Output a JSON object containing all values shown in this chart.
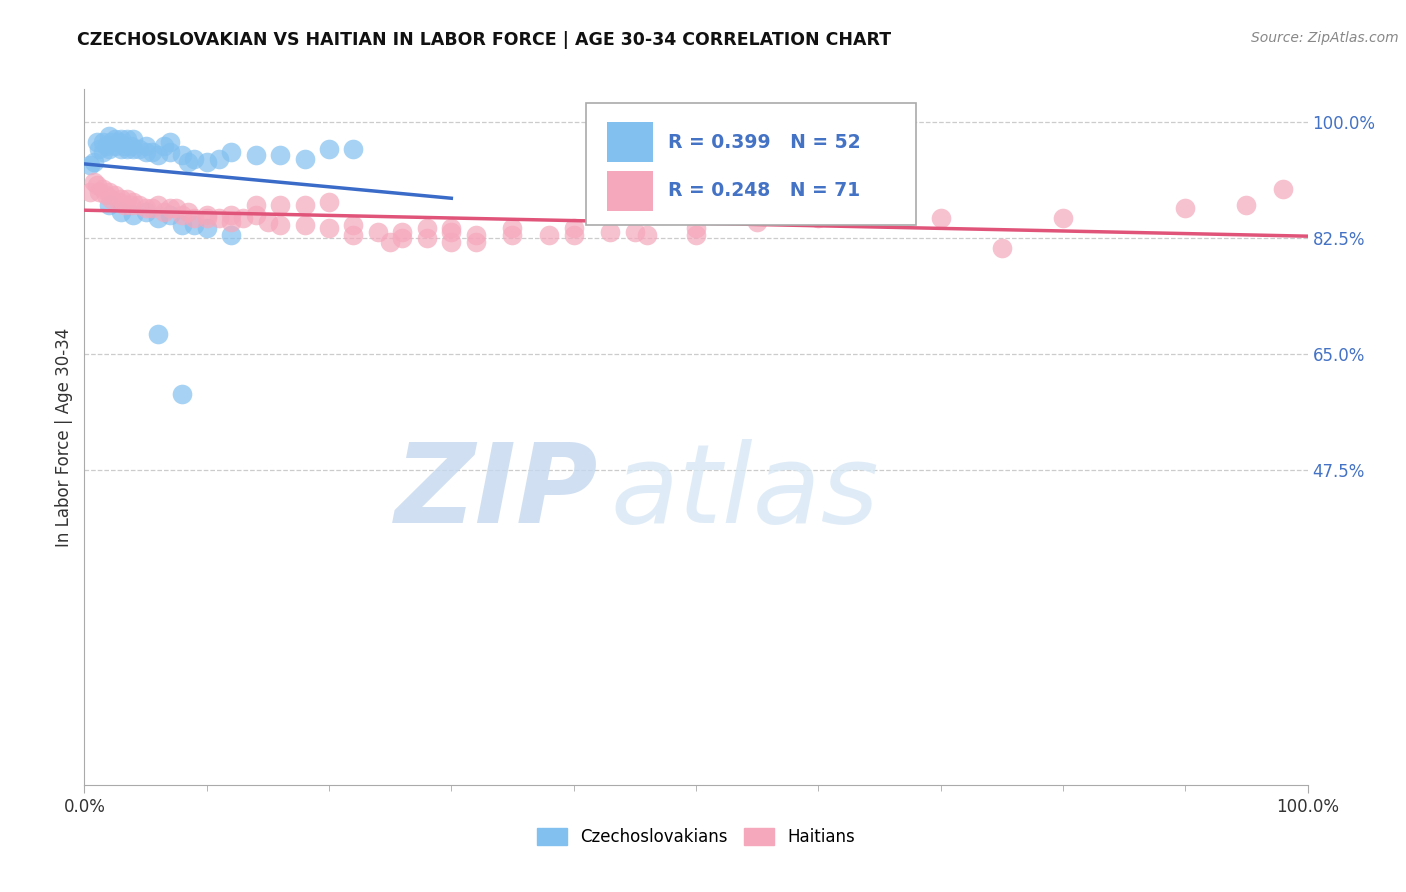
{
  "title": "CZECHOSLOVAKIAN VS HAITIAN IN LABOR FORCE | AGE 30-34 CORRELATION CHART",
  "source": "Source: ZipAtlas.com",
  "ylabel": "In Labor Force | Age 30-34",
  "xlim": [
    0.0,
    1.0
  ],
  "ylim": [
    0.0,
    1.05
  ],
  "x_tick_labels": [
    "0.0%",
    "100.0%"
  ],
  "x_tick_positions": [
    0.0,
    1.0
  ],
  "y_tick_labels_right": [
    "100.0%",
    "82.5%",
    "65.0%",
    "47.5%"
  ],
  "y_tick_positions_right": [
    1.0,
    0.825,
    0.65,
    0.475
  ],
  "legend_label1": "Czechoslovakians",
  "legend_label2": "Haitians",
  "blue_color": "#82C0F0",
  "pink_color": "#F5A8BC",
  "blue_line_color": "#3A6BC8",
  "pink_line_color": "#E0547A",
  "r_n_color": "#4472C4",
  "watermark_zip": "ZIP",
  "watermark_atlas": "atlas",
  "blue_x": [
    0.005,
    0.008,
    0.01,
    0.012,
    0.015,
    0.015,
    0.018,
    0.02,
    0.02,
    0.022,
    0.025,
    0.025,
    0.028,
    0.03,
    0.03,
    0.032,
    0.035,
    0.035,
    0.038,
    0.04,
    0.04,
    0.045,
    0.05,
    0.05,
    0.055,
    0.06,
    0.065,
    0.07,
    0.07,
    0.08,
    0.085,
    0.09,
    0.1,
    0.11,
    0.12,
    0.14,
    0.16,
    0.18,
    0.2,
    0.22,
    0.02,
    0.03,
    0.04,
    0.05,
    0.06,
    0.07,
    0.08,
    0.09,
    0.1,
    0.12,
    0.06,
    0.08
  ],
  "blue_y": [
    0.935,
    0.94,
    0.97,
    0.96,
    0.955,
    0.97,
    0.965,
    0.96,
    0.98,
    0.97,
    0.965,
    0.975,
    0.97,
    0.96,
    0.975,
    0.965,
    0.96,
    0.975,
    0.965,
    0.96,
    0.975,
    0.96,
    0.955,
    0.965,
    0.955,
    0.95,
    0.965,
    0.955,
    0.97,
    0.95,
    0.94,
    0.945,
    0.94,
    0.945,
    0.955,
    0.95,
    0.95,
    0.945,
    0.96,
    0.96,
    0.875,
    0.865,
    0.86,
    0.865,
    0.855,
    0.86,
    0.845,
    0.845,
    0.84,
    0.83,
    0.68,
    0.59
  ],
  "pink_x": [
    0.005,
    0.008,
    0.01,
    0.012,
    0.015,
    0.018,
    0.02,
    0.022,
    0.025,
    0.028,
    0.03,
    0.032,
    0.035,
    0.038,
    0.04,
    0.045,
    0.05,
    0.055,
    0.06,
    0.065,
    0.07,
    0.075,
    0.08,
    0.085,
    0.09,
    0.1,
    0.11,
    0.12,
    0.13,
    0.14,
    0.15,
    0.16,
    0.18,
    0.2,
    0.22,
    0.24,
    0.26,
    0.28,
    0.3,
    0.32,
    0.35,
    0.38,
    0.4,
    0.43,
    0.46,
    0.5,
    0.22,
    0.25,
    0.28,
    0.32,
    0.1,
    0.12,
    0.14,
    0.16,
    0.18,
    0.2,
    0.3,
    0.35,
    0.4,
    0.45,
    0.5,
    0.55,
    0.6,
    0.7,
    0.8,
    0.9,
    0.95,
    0.98,
    0.26,
    0.3,
    0.75
  ],
  "pink_y": [
    0.895,
    0.91,
    0.905,
    0.895,
    0.9,
    0.89,
    0.895,
    0.885,
    0.89,
    0.88,
    0.885,
    0.875,
    0.885,
    0.875,
    0.88,
    0.875,
    0.87,
    0.87,
    0.875,
    0.865,
    0.87,
    0.87,
    0.86,
    0.865,
    0.855,
    0.86,
    0.855,
    0.85,
    0.855,
    0.86,
    0.85,
    0.845,
    0.845,
    0.84,
    0.845,
    0.835,
    0.835,
    0.84,
    0.835,
    0.83,
    0.83,
    0.83,
    0.84,
    0.835,
    0.83,
    0.83,
    0.83,
    0.82,
    0.825,
    0.82,
    0.855,
    0.86,
    0.875,
    0.875,
    0.875,
    0.88,
    0.84,
    0.84,
    0.83,
    0.835,
    0.84,
    0.85,
    0.855,
    0.855,
    0.855,
    0.87,
    0.875,
    0.9,
    0.825,
    0.82,
    0.81
  ]
}
